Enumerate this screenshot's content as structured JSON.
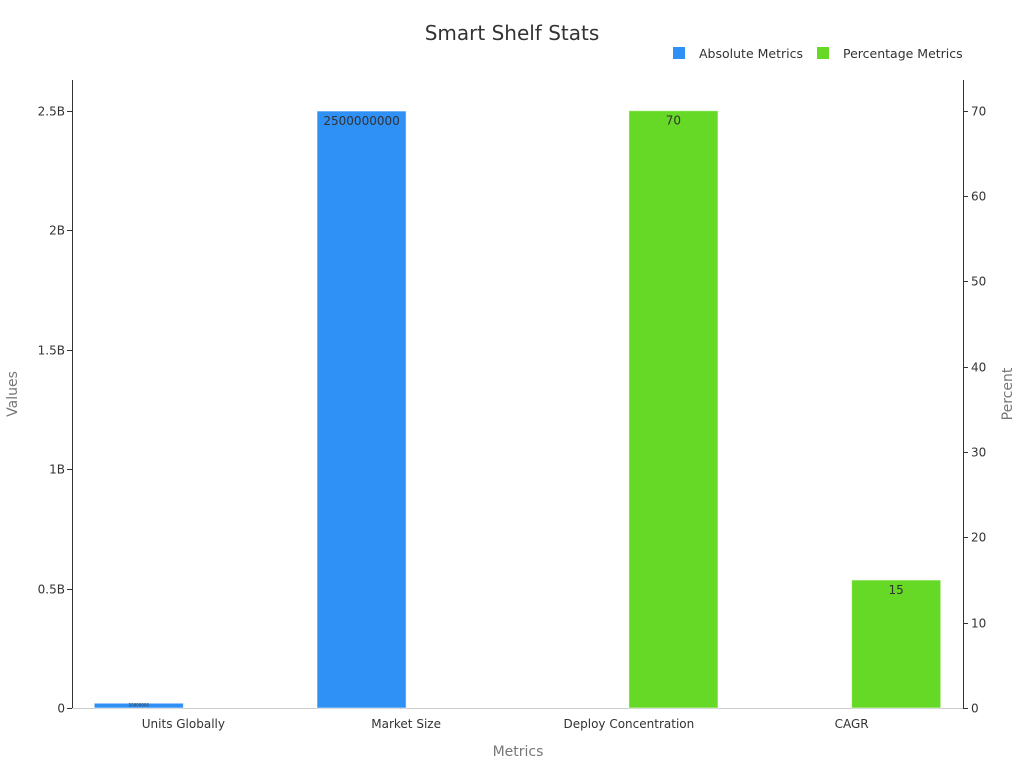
{
  "chart_data": {
    "type": "bar",
    "title": "Smart Shelf Stats",
    "xlabel": "Metrics",
    "ylabel": "Values",
    "y2label": "Percent",
    "categories": [
      "Units Globally",
      "Market Size",
      "Deploy Concentration",
      "CAGR"
    ],
    "series": [
      {
        "name": "Absolute Metrics",
        "axis": "left",
        "color": "#2f90f5",
        "values": [
          20000000,
          2500000000,
          null,
          null
        ],
        "labels": [
          "20000000",
          "2500000000",
          "",
          ""
        ]
      },
      {
        "name": "Percentage Metrics",
        "axis": "right",
        "color": "#66d926",
        "values": [
          null,
          null,
          70,
          15
        ],
        "labels": [
          "",
          "",
          "70",
          "15"
        ]
      }
    ],
    "y_axis": {
      "range": [
        0,
        2630000000
      ],
      "ticks": [
        0,
        500000000,
        1000000000,
        1500000000,
        2000000000,
        2500000000
      ],
      "tick_labels": [
        "0",
        "0.5B",
        "1B",
        "1.5B",
        "2B",
        "2.5B"
      ]
    },
    "y2_axis": {
      "range": [
        0,
        73.6
      ],
      "ticks": [
        0,
        10,
        20,
        30,
        40,
        50,
        60,
        70
      ],
      "tick_labels": [
        "0",
        "10",
        "20",
        "30",
        "40",
        "50",
        "60",
        "70"
      ]
    },
    "grid": false,
    "legend_position": "top-right"
  }
}
